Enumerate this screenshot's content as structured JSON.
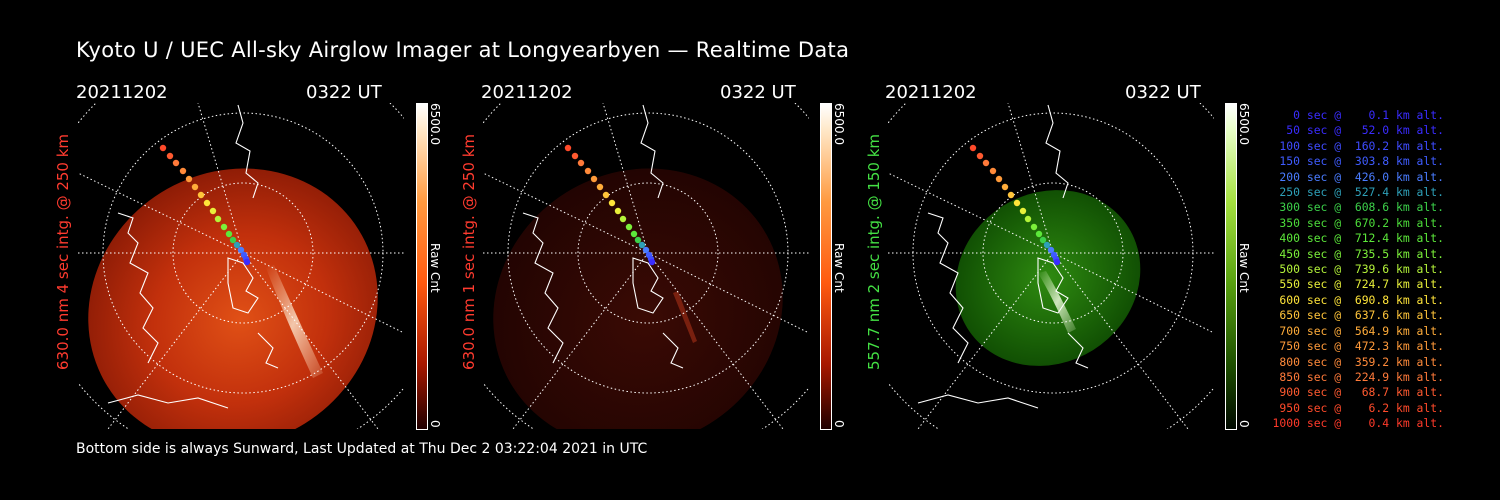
{
  "title": "Kyoto U / UEC All-sky Airglow Imager at Longyearbyen — Realtime Data",
  "panels": [
    {
      "date": "20211202",
      "time": "0322 UT",
      "side_label": "630.0 nm 4 sec intg. @ 250 km",
      "side_color": "#ff3b2f",
      "cbar_max": "6500.0",
      "cbar_unit": "Raw Cnt",
      "cbar_min": "0",
      "scheme": "red"
    },
    {
      "date": "20211202",
      "time": "0322 UT",
      "side_label": "630.0 nm 1 sec intg. @ 250 km",
      "side_color": "#ff3b2f",
      "cbar_max": "6500.0",
      "cbar_unit": "Raw Cnt",
      "cbar_min": "0",
      "scheme": "darkred"
    },
    {
      "date": "20211202",
      "time": "0322 UT",
      "side_label": "557.7 nm 2 sec intg. @ 150 km",
      "side_color": "#44e044",
      "cbar_max": "6500.0",
      "cbar_unit": "Raw Cnt",
      "cbar_min": "0",
      "scheme": "green"
    }
  ],
  "footer": "Bottom side is always Sunward, Last Updated at Thu Dec  2 03:22:04 2021 in UTC",
  "legend": [
    {
      "text": "   0 sec @    0.1 km alt.",
      "color": "#3a2cff"
    },
    {
      "text": "  50 sec @   52.0 km alt.",
      "color": "#3a2cff"
    },
    {
      "text": " 100 sec @  160.2 km alt.",
      "color": "#3f4cff"
    },
    {
      "text": " 150 sec @  303.8 km alt.",
      "color": "#3f5cff"
    },
    {
      "text": " 200 sec @  426.0 km alt.",
      "color": "#4a7cff"
    },
    {
      "text": " 250 sec @  527.4 km alt.",
      "color": "#2ea0b8"
    },
    {
      "text": " 300 sec @  608.6 km alt.",
      "color": "#3cd04a"
    },
    {
      "text": " 350 sec @  670.2 km alt.",
      "color": "#4cdc3a"
    },
    {
      "text": " 400 sec @  712.4 km alt.",
      "color": "#5ce83a"
    },
    {
      "text": " 450 sec @  735.5 km alt.",
      "color": "#7cf03a"
    },
    {
      "text": " 500 sec @  739.6 km alt.",
      "color": "#b4f43a"
    },
    {
      "text": " 550 sec @  724.7 km alt.",
      "color": "#e8f03a"
    },
    {
      "text": " 600 sec @  690.8 km alt.",
      "color": "#ffe43a"
    },
    {
      "text": " 650 sec @  637.6 km alt.",
      "color": "#ffc43a"
    },
    {
      "text": " 700 sec @  564.9 km alt.",
      "color": "#ffac3a"
    },
    {
      "text": " 750 sec @  472.3 km alt.",
      "color": "#ff9a3a"
    },
    {
      "text": " 800 sec @  359.2 km alt.",
      "color": "#ff8a3a"
    },
    {
      "text": " 850 sec @  224.9 km alt.",
      "color": "#ff7a3a"
    },
    {
      "text": " 900 sec @   68.7 km alt.",
      "color": "#ff5a30"
    },
    {
      "text": " 950 sec @    6.2 km alt.",
      "color": "#ff4a2a"
    },
    {
      "text": "1000 sec @    0.4 km alt.",
      "color": "#ff3a2a"
    }
  ]
}
